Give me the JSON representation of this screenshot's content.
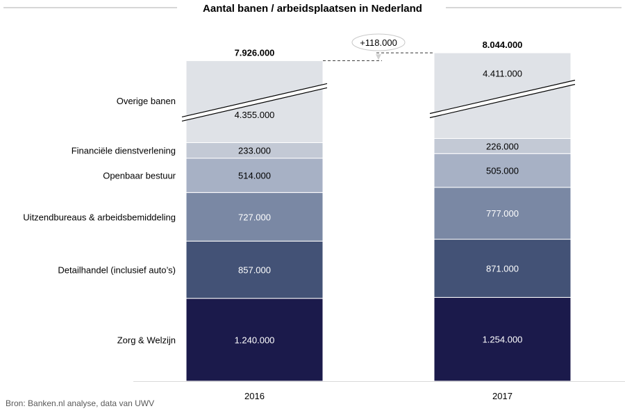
{
  "chart_data": {
    "type": "bar",
    "stacked": true,
    "title": "Aantal banen / arbeidsplaatsen in Nederland",
    "categories": [
      "2016",
      "2017"
    ],
    "series": [
      {
        "name": "Zorg & Welzijn",
        "values": [
          1240000,
          1254000
        ],
        "labels": [
          "1.240.000",
          "1.254.000"
        ],
        "color": "#1b1a4b"
      },
      {
        "name": "Detailhandel (inclusief auto’s)",
        "values": [
          857000,
          871000
        ],
        "labels": [
          "857.000",
          "871.000"
        ],
        "color": "#435276"
      },
      {
        "name": "Uitzendbureaus & arbeidsbemiddeling",
        "values": [
          727000,
          777000
        ],
        "labels": [
          "727.000",
          "777.000"
        ],
        "color": "#7a88a4"
      },
      {
        "name": "Openbaar bestuur",
        "values": [
          514000,
          505000
        ],
        "labels": [
          "514.000",
          "505.000"
        ],
        "color": "#a7b1c5"
      },
      {
        "name": "Financiële dienstverlening",
        "values": [
          233000,
          226000
        ],
        "labels": [
          "233.000",
          "226.000"
        ],
        "color": "#c3c9d5"
      },
      {
        "name": "Overige banen",
        "values": [
          4355000,
          4411000
        ],
        "labels": [
          "4.355.000",
          "4.411.000"
        ],
        "color": "#dfe2e7"
      }
    ],
    "totals": [
      "7.926.000",
      "8.044.000"
    ],
    "difference": "+118.000",
    "axis_break": true,
    "legend": "left"
  },
  "source": "Bron: Banken.nl analyse, data van UWV"
}
